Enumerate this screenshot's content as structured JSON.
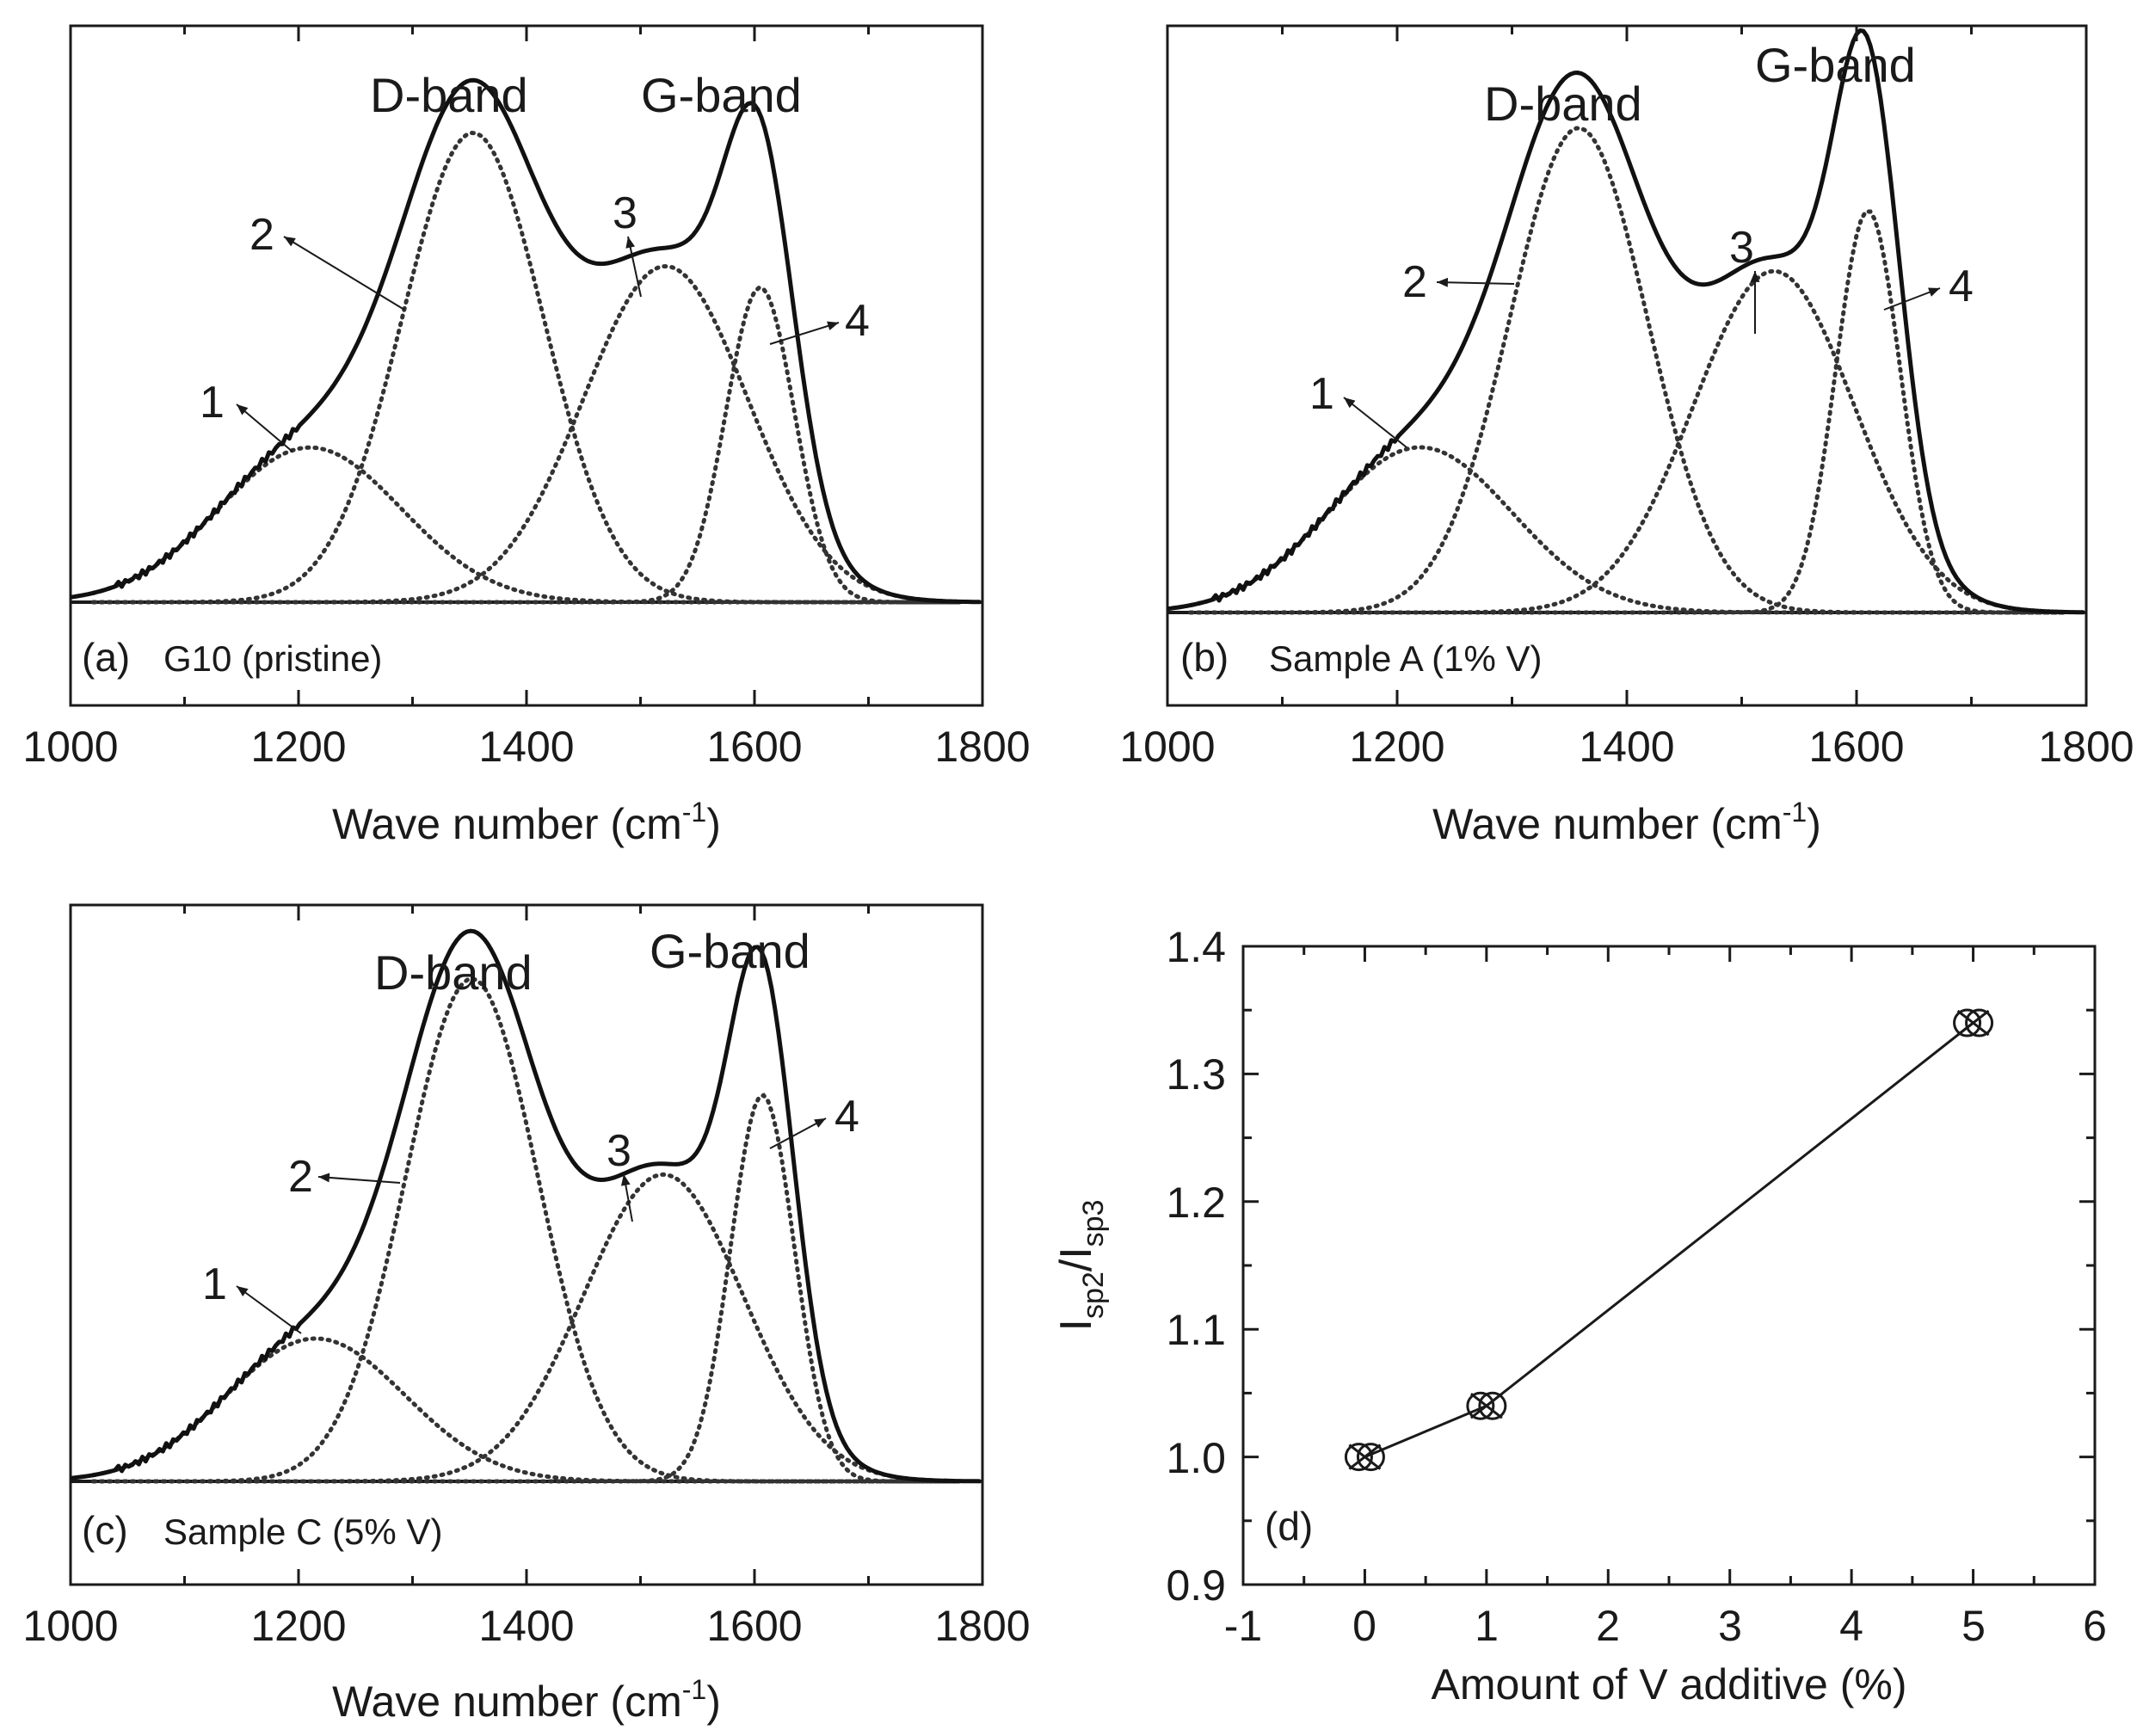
{
  "chart_data": [
    {
      "panel": "a",
      "type": "line",
      "label": "(a)",
      "sample": "G10 (pristine)",
      "xlabel": "Wave number (cm",
      "xlabel_sup": "-1",
      "xlabel_close": ")",
      "xlim": [
        1000,
        1800
      ],
      "xticks": [
        "1000",
        "1200",
        "1400",
        "1600",
        "1800"
      ],
      "band_labels": [
        "D-band",
        "G-band"
      ],
      "peak_labels": [
        "1",
        "2",
        "3",
        "4"
      ],
      "components": [
        {
          "name": "1",
          "center": 1210,
          "height": 0.29,
          "width": 80
        },
        {
          "name": "2",
          "center": 1353,
          "height": 0.88,
          "width": 62
        },
        {
          "name": "3",
          "center": 1522,
          "height": 0.63,
          "width": 72
        },
        {
          "name": "4",
          "center": 1605,
          "height": 0.59,
          "width": 30
        }
      ]
    },
    {
      "panel": "b",
      "type": "line",
      "label": "(b)",
      "sample": "Sample A (1% V)",
      "xlabel": "Wave number (cm",
      "xlabel_sup": "-1",
      "xlabel_close": ")",
      "xlim": [
        1000,
        1800
      ],
      "xticks": [
        "1000",
        "1200",
        "1400",
        "1600",
        "1800"
      ],
      "band_labels": [
        "D-band",
        "G-band"
      ],
      "peak_labels": [
        "1",
        "2",
        "3",
        "4"
      ],
      "components": [
        {
          "name": "1",
          "center": 1220,
          "height": 0.3,
          "width": 80
        },
        {
          "name": "2",
          "center": 1358,
          "height": 0.88,
          "width": 60
        },
        {
          "name": "3",
          "center": 1528,
          "height": 0.62,
          "width": 70
        },
        {
          "name": "4",
          "center": 1610,
          "height": 0.73,
          "width": 28
        }
      ]
    },
    {
      "panel": "c",
      "type": "line",
      "label": "(c)",
      "sample": "Sample C (5% V)",
      "xlabel": "Wave number (cm",
      "xlabel_sup": "-1",
      "xlabel_close": ")",
      "xlim": [
        1000,
        1800
      ],
      "xticks": [
        "1000",
        "1200",
        "1400",
        "1600",
        "1800"
      ],
      "band_labels": [
        "D-band",
        "G-band"
      ],
      "peak_labels": [
        "1",
        "2",
        "3",
        "4"
      ],
      "components": [
        {
          "name": "1",
          "center": 1215,
          "height": 0.27,
          "width": 78
        },
        {
          "name": "2",
          "center": 1352,
          "height": 0.95,
          "width": 58
        },
        {
          "name": "3",
          "center": 1520,
          "height": 0.58,
          "width": 70
        },
        {
          "name": "4",
          "center": 1607,
          "height": 0.73,
          "width": 28
        }
      ]
    },
    {
      "panel": "d",
      "type": "scatter",
      "label": "(d)",
      "ylabel_main": "I",
      "ylabel_sub1": "sp2",
      "ylabel_mid": "/I",
      "ylabel_sub2": "sp3",
      "xlabel": "Amount of V additive (%)",
      "xlim": [
        -1,
        6
      ],
      "ylim": [
        0.9,
        1.4
      ],
      "xticks": [
        "-1",
        "0",
        "1",
        "2",
        "3",
        "4",
        "5",
        "6"
      ],
      "yticks": [
        "0.9",
        "1.0",
        "1.1",
        "1.2",
        "1.3",
        "1.4"
      ],
      "x": [
        0,
        1,
        5
      ],
      "y": [
        1.0,
        1.04,
        1.34
      ]
    }
  ]
}
